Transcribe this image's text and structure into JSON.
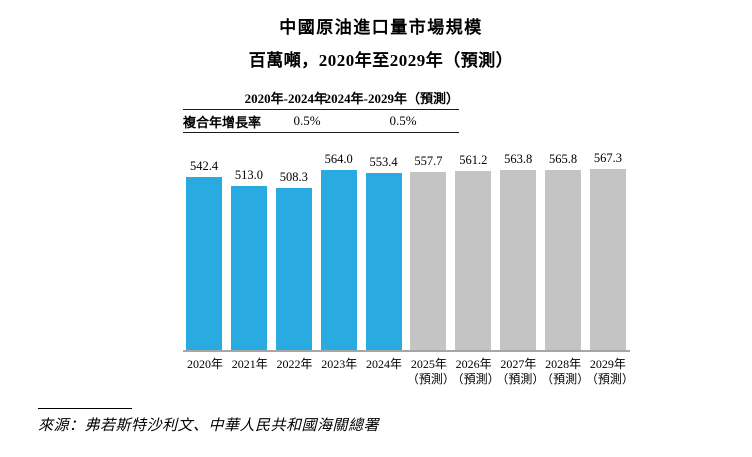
{
  "title": "中國原油進口量市場規模",
  "subtitle": "百萬噸，2020年至2029年（預測）",
  "cagr_table": {
    "row_label": "複合年增長率",
    "columns": [
      "2020年-2024年",
      "2024年-2029年（預測）"
    ],
    "values": [
      "0.5%",
      "0.5%"
    ]
  },
  "chart_data": {
    "type": "bar",
    "title": "中國原油進口量市場規模",
    "ylabel": "百萬噸",
    "categories": [
      "2020年",
      "2021年",
      "2022年",
      "2023年",
      "2024年",
      "2025年（預測）",
      "2026年（預測）",
      "2027年（預測）",
      "2028年（預測）",
      "2029年（預測）"
    ],
    "x_labels": [
      [
        "2020年"
      ],
      [
        "2021年"
      ],
      [
        "2022年"
      ],
      [
        "2023年"
      ],
      [
        "2024年"
      ],
      [
        "2025年",
        "（預測）"
      ],
      [
        "2026年",
        "（預測）"
      ],
      [
        "2027年",
        "（預測）"
      ],
      [
        "2028年",
        "（預測）"
      ],
      [
        "2029年",
        "（預測）"
      ]
    ],
    "values": [
      542.4,
      513.0,
      508.3,
      564.0,
      553.4,
      557.7,
      561.2,
      563.8,
      565.8,
      567.3
    ],
    "value_labels": [
      "542.4",
      "513.0",
      "508.3",
      "564.0",
      "553.4",
      "557.7",
      "561.2",
      "563.8",
      "565.8",
      "567.3"
    ],
    "bar_types": [
      "actual",
      "actual",
      "actual",
      "actual",
      "actual",
      "forecast",
      "forecast",
      "forecast",
      "forecast",
      "forecast"
    ],
    "ylim": [
      0,
      567.3
    ],
    "grid": false,
    "legend": false
  },
  "colors": {
    "actual": "#29ABE2",
    "forecast": "#C4C4C4",
    "axis": "#A6A6A6"
  },
  "source": "來源：弗若斯特沙利文、中華人民共和國海關總署"
}
